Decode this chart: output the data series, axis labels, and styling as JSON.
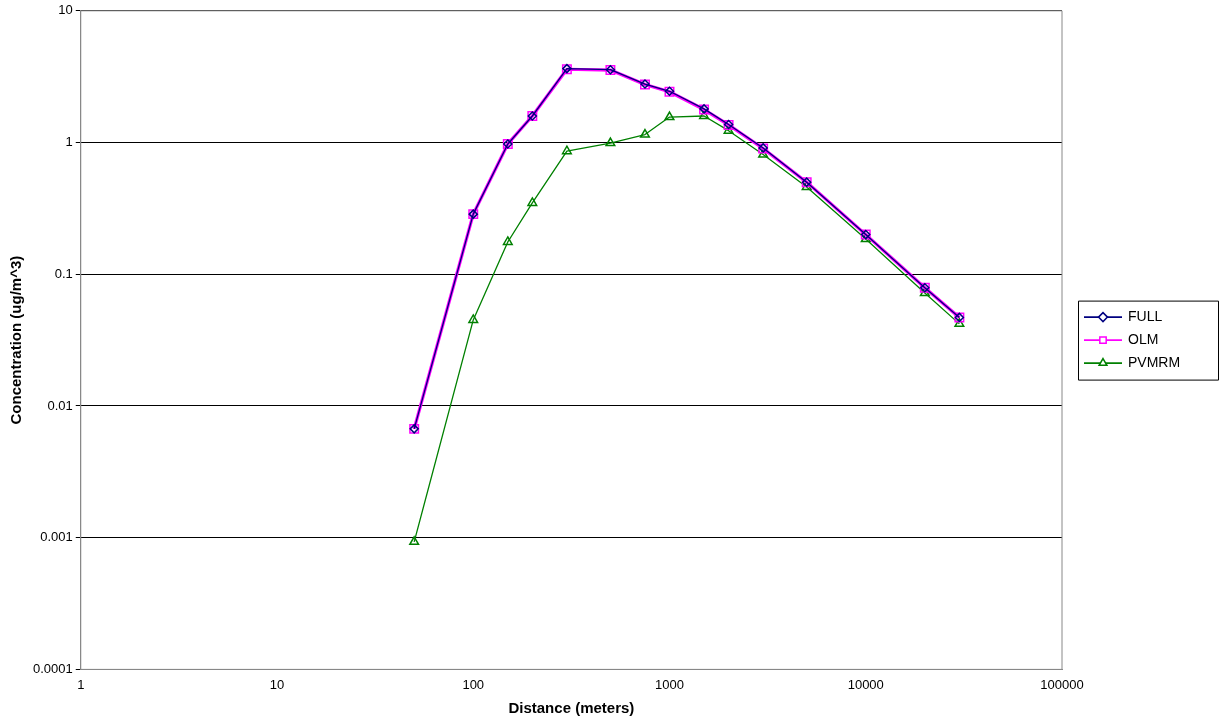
{
  "chart_data": {
    "type": "line",
    "xlabel": "Distance (meters)",
    "ylabel": "Concentration (ug/m^3)",
    "log": "xy",
    "grid": "y",
    "legend": "right",
    "line_style": "solid",
    "x": [
      50,
      100,
      150,
      200,
      300,
      500,
      750,
      1000,
      1500,
      2000,
      3000,
      5000,
      10000,
      20000,
      30000
    ],
    "xlim": [
      1,
      100000
    ],
    "xticks": [
      1,
      10,
      100,
      1000,
      10000,
      100000
    ],
    "ylim": [
      0.0001,
      10
    ],
    "yticks": [
      0.0001,
      0.001,
      0.01,
      0.1,
      1,
      10
    ],
    "series": [
      {
        "name": "FULL",
        "color": "#000080",
        "marker": "diamond",
        "values": [
          0.0067,
          0.286,
          0.975,
          1.59,
          3.64,
          3.57,
          2.78,
          2.45,
          1.8,
          1.37,
          0.91,
          0.5,
          0.2,
          0.079,
          0.047
        ]
      },
      {
        "name": "OLM",
        "color": "#ff00ff",
        "marker": "square",
        "values": [
          0.0067,
          0.286,
          0.975,
          1.59,
          3.6,
          3.55,
          2.76,
          2.43,
          1.78,
          1.36,
          0.9,
          0.5,
          0.2,
          0.079,
          0.047
        ]
      },
      {
        "name": "PVMRM",
        "color": "#008000",
        "marker": "triangle",
        "values": [
          0.00093,
          0.045,
          0.176,
          0.348,
          0.86,
          0.99,
          1.15,
          1.56,
          1.59,
          1.23,
          0.81,
          0.46,
          0.185,
          0.072,
          0.042
        ]
      }
    ]
  }
}
